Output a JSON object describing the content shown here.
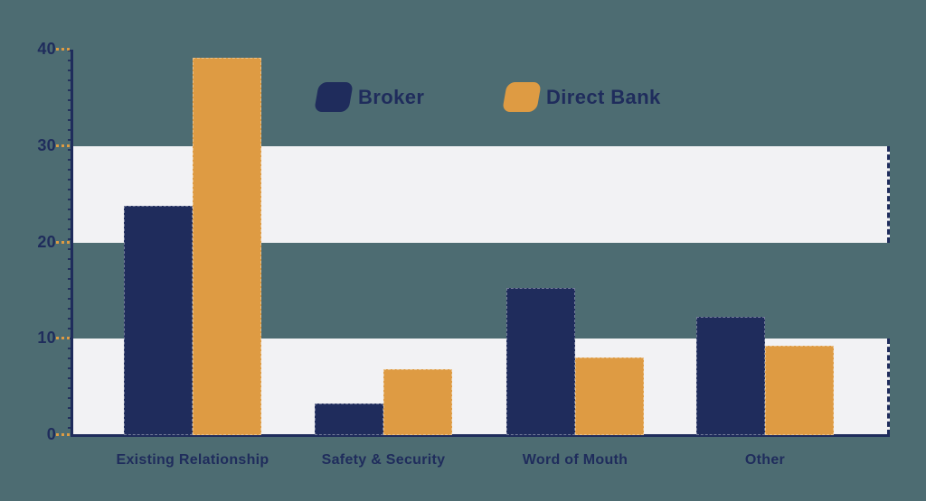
{
  "colors": {
    "background": "#4D6C72",
    "band": "#F2F2F4",
    "axis": "#1F2C5C",
    "text": "#1F2C5C",
    "major_tick": "#DE9B43",
    "series_broker": "#1F2C5C",
    "series_direct_bank": "#DE9B43"
  },
  "chart_data": {
    "type": "bar",
    "title": "",
    "xlabel": "",
    "ylabel": "",
    "categories": [
      "Existing Relationship",
      "Safety & Security",
      "Word of Mouth",
      "Other"
    ],
    "series": [
      {
        "name": "Broker",
        "color": "#1F2C5C",
        "values": [
          23.8,
          3.3,
          15.3,
          12.3
        ]
      },
      {
        "name": "Direct Bank",
        "color": "#DE9B43",
        "values": [
          39.2,
          6.8,
          8.1,
          9.3
        ]
      }
    ],
    "ylim": [
      0,
      40
    ],
    "yticks": [
      0,
      10,
      20,
      30,
      40
    ],
    "bands": [
      [
        0,
        10
      ],
      [
        20,
        30
      ]
    ],
    "grid": "horizontal-striped-bands",
    "legend_position": "top-center"
  }
}
